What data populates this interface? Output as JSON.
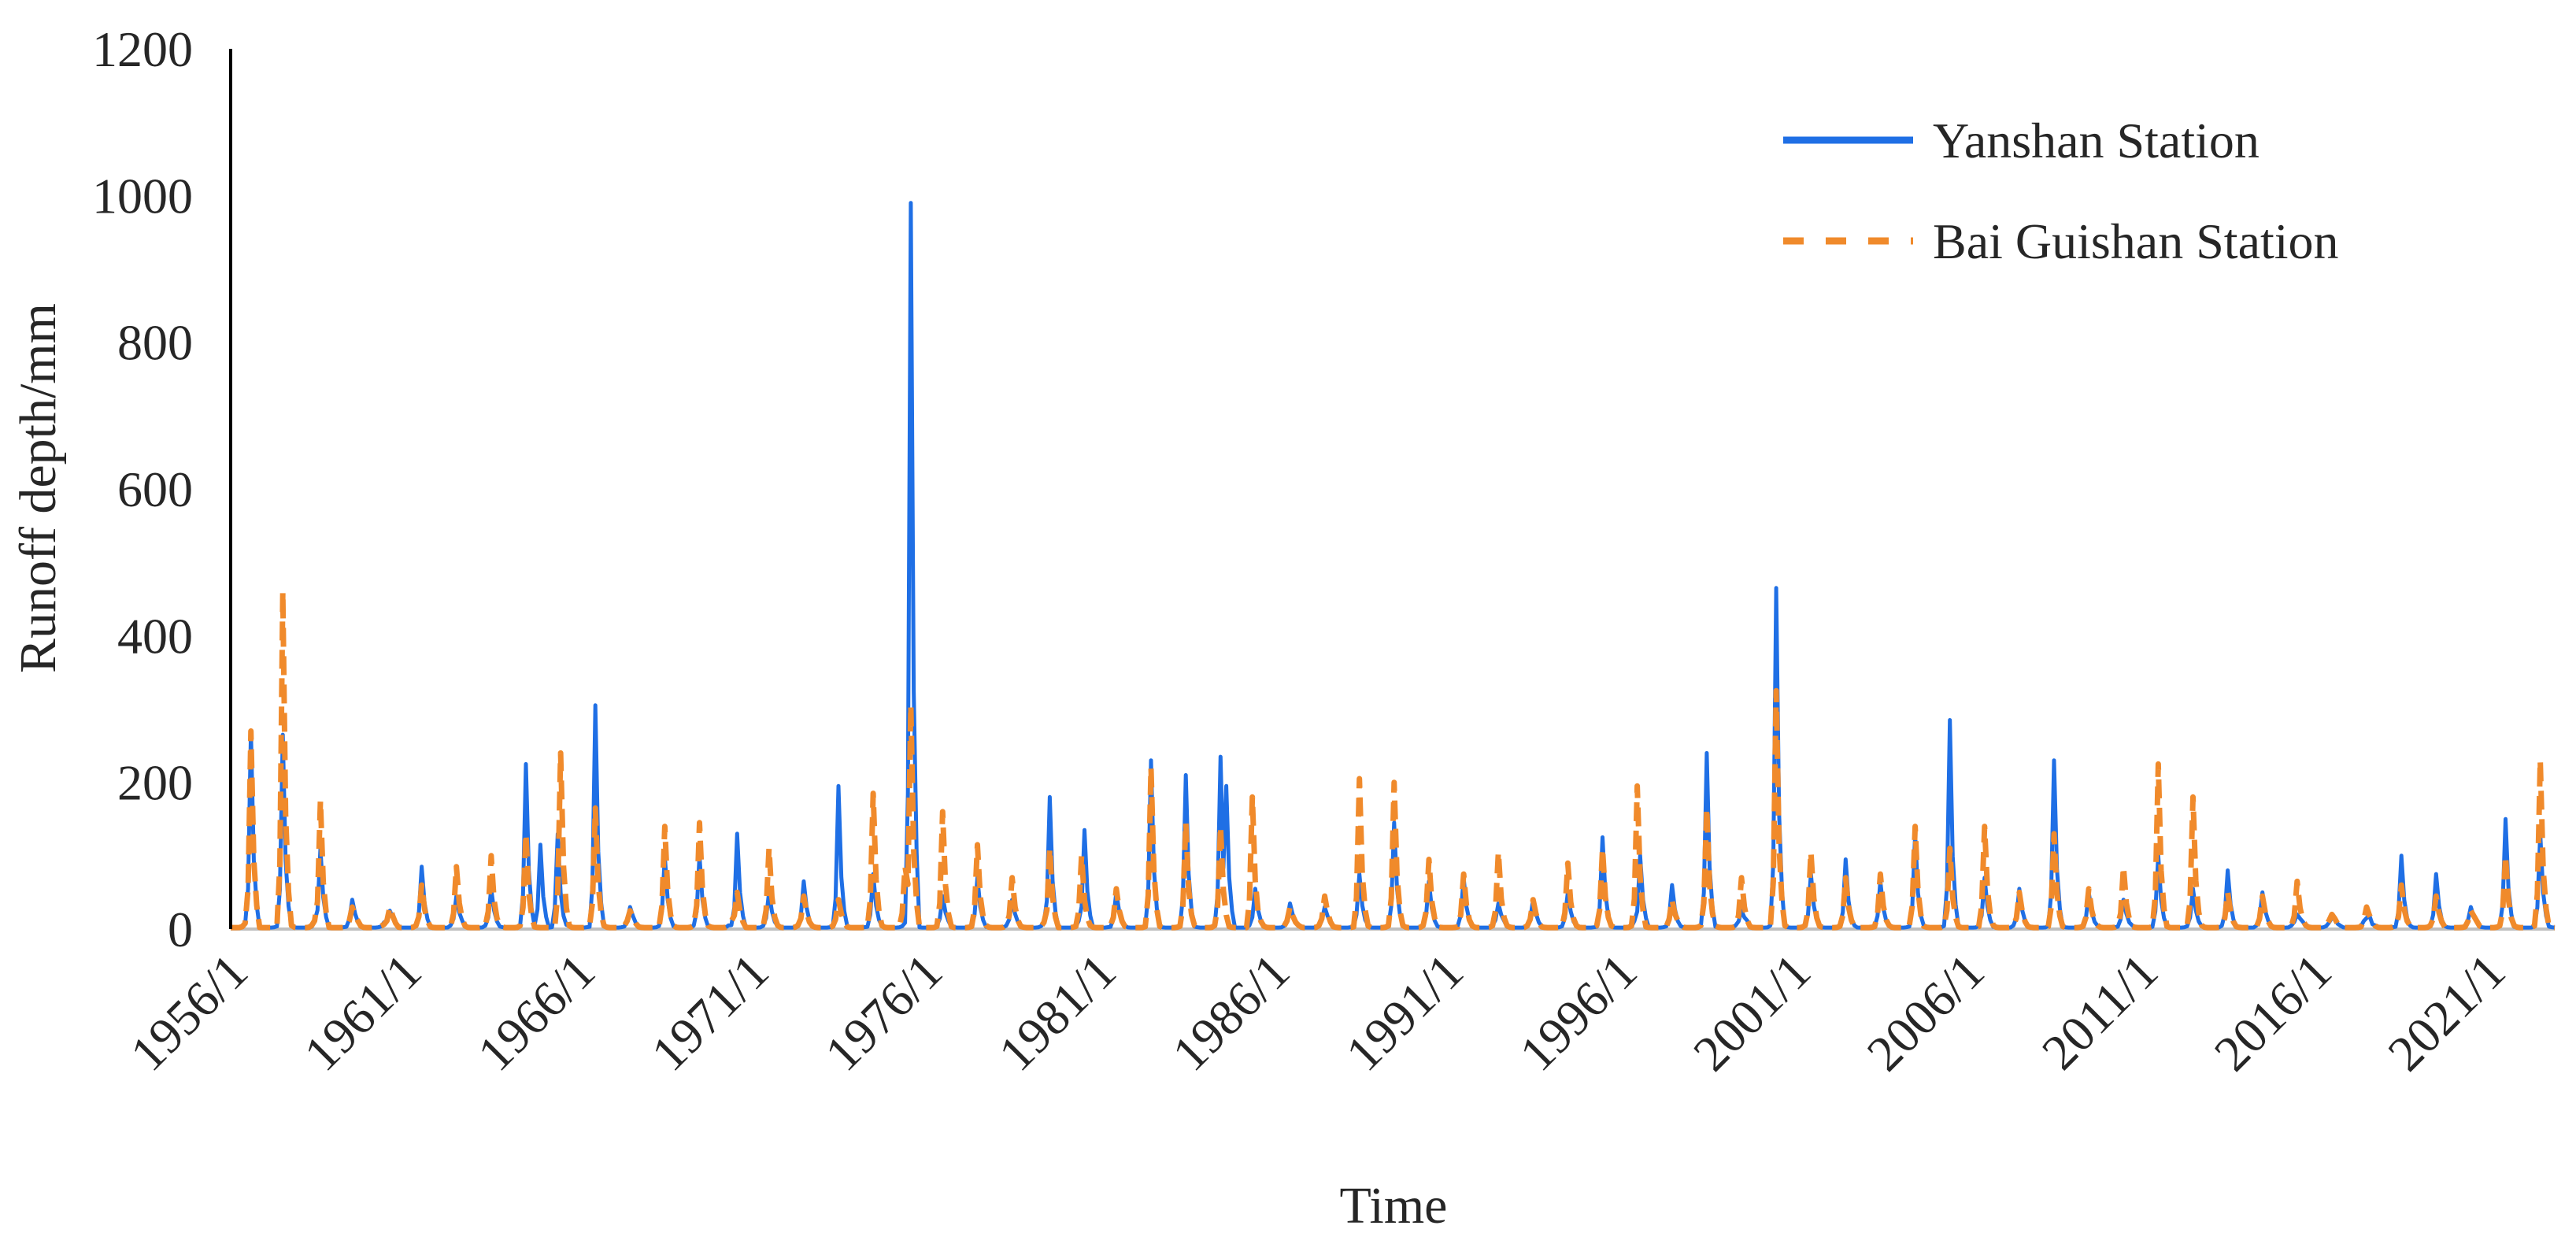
{
  "chart_data": {
    "type": "line",
    "title": "",
    "xlabel": "Time",
    "ylabel": "Runoff depth/mm",
    "ylim": [
      0,
      1200
    ],
    "yticks": [
      "0",
      "200",
      "400",
      "600",
      "800",
      "1000",
      "1200"
    ],
    "xticks": [
      "1956/1",
      "1961/1",
      "1966/1",
      "1971/1",
      "1976/1",
      "1981/1",
      "1986/1",
      "1991/1",
      "1996/1",
      "2001/1",
      "2006/1",
      "2011/1",
      "2016/1",
      "2021/1"
    ],
    "x_start": "1956/1",
    "x_end": "2022/12",
    "x_unit": "month",
    "legend_position": "top-right",
    "grid": false,
    "series": [
      {
        "name": "Yanshan Station",
        "color": "#1f6fe5",
        "style": "solid",
        "peaks": [
          [
            "1956/8",
            270
          ],
          [
            "1957/7",
            265
          ],
          [
            "1958/8",
            110
          ],
          [
            "1959/7",
            40
          ],
          [
            "1960/8",
            25
          ],
          [
            "1961/7",
            85
          ],
          [
            "1962/7",
            45
          ],
          [
            "1963/7",
            55
          ],
          [
            "1964/7",
            225
          ],
          [
            "1964/12",
            115
          ],
          [
            "1965/6",
            130
          ],
          [
            "1966/7",
            305
          ],
          [
            "1967/7",
            30
          ],
          [
            "1968/7",
            100
          ],
          [
            "1969/7",
            100
          ],
          [
            "1970/8",
            130
          ],
          [
            "1971/7",
            50
          ],
          [
            "1972/7",
            65
          ],
          [
            "1973/7",
            195
          ],
          [
            "1974/7",
            75
          ],
          [
            "1975/8",
            990
          ],
          [
            "1976/7",
            45
          ],
          [
            "1977/7",
            70
          ],
          [
            "1978/7",
            40
          ],
          [
            "1979/8",
            180
          ],
          [
            "1980/8",
            135
          ],
          [
            "1981/7",
            50
          ],
          [
            "1982/7",
            230
          ],
          [
            "1983/7",
            210
          ],
          [
            "1984/7",
            235
          ],
          [
            "1984/9",
            195
          ],
          [
            "1985/7",
            55
          ],
          [
            "1986/7",
            35
          ],
          [
            "1987/7",
            30
          ],
          [
            "1988/7",
            75
          ],
          [
            "1989/7",
            145
          ],
          [
            "1990/7",
            65
          ],
          [
            "1991/7",
            70
          ],
          [
            "1992/7",
            35
          ],
          [
            "1993/7",
            40
          ],
          [
            "1994/7",
            50
          ],
          [
            "1995/7",
            125
          ],
          [
            "1996/8",
            100
          ],
          [
            "1997/7",
            60
          ],
          [
            "1998/7",
            240
          ],
          [
            "1999/7",
            25
          ],
          [
            "2000/7",
            465
          ],
          [
            "2001/7",
            75
          ],
          [
            "2002/7",
            95
          ],
          [
            "2003/7",
            65
          ],
          [
            "2004/7",
            130
          ],
          [
            "2005/7",
            285
          ],
          [
            "2006/7",
            70
          ],
          [
            "2007/7",
            55
          ],
          [
            "2008/7",
            230
          ],
          [
            "2009/7",
            50
          ],
          [
            "2010/7",
            40
          ],
          [
            "2011/7",
            100
          ],
          [
            "2012/7",
            55
          ],
          [
            "2013/7",
            80
          ],
          [
            "2014/7",
            50
          ],
          [
            "2015/7",
            20
          ],
          [
            "2016/7",
            15
          ],
          [
            "2017/7",
            15
          ],
          [
            "2018/7",
            100
          ],
          [
            "2019/7",
            75
          ],
          [
            "2020/7",
            30
          ],
          [
            "2021/7",
            150
          ],
          [
            "2022/7",
            130
          ]
        ]
      },
      {
        "name": "Bai Guishan Station",
        "color": "#f08a2b",
        "style": "dashed",
        "peaks": [
          [
            "1956/8",
            270
          ],
          [
            "1957/7",
            460
          ],
          [
            "1958/8",
            175
          ],
          [
            "1959/7",
            30
          ],
          [
            "1960/8",
            30
          ],
          [
            "1961/7",
            60
          ],
          [
            "1962/7",
            85
          ],
          [
            "1963/7",
            100
          ],
          [
            "1964/7",
            130
          ],
          [
            "1965/7",
            240
          ],
          [
            "1966/7",
            165
          ],
          [
            "1967/7",
            25
          ],
          [
            "1968/7",
            140
          ],
          [
            "1969/7",
            145
          ],
          [
            "1970/8",
            50
          ],
          [
            "1971/7",
            110
          ],
          [
            "1972/7",
            45
          ],
          [
            "1973/7",
            40
          ],
          [
            "1974/7",
            185
          ],
          [
            "1975/6",
            85
          ],
          [
            "1975/8",
            305
          ],
          [
            "1976/7",
            160
          ],
          [
            "1977/7",
            115
          ],
          [
            "1978/7",
            70
          ],
          [
            "1979/8",
            110
          ],
          [
            "1980/7",
            100
          ],
          [
            "1981/7",
            55
          ],
          [
            "1982/7",
            220
          ],
          [
            "1983/7",
            145
          ],
          [
            "1984/7",
            140
          ],
          [
            "1985/6",
            180
          ],
          [
            "1986/7",
            30
          ],
          [
            "1987/7",
            45
          ],
          [
            "1988/7",
            205
          ],
          [
            "1989/7",
            200
          ],
          [
            "1990/7",
            95
          ],
          [
            "1991/7",
            75
          ],
          [
            "1992/7",
            105
          ],
          [
            "1993/7",
            40
          ],
          [
            "1994/7",
            90
          ],
          [
            "1995/7",
            110
          ],
          [
            "1996/7",
            195
          ],
          [
            "1997/7",
            40
          ],
          [
            "1998/7",
            165
          ],
          [
            "1999/7",
            70
          ],
          [
            "2000/7",
            325
          ],
          [
            "2001/7",
            105
          ],
          [
            "2002/7",
            70
          ],
          [
            "2003/7",
            75
          ],
          [
            "2004/7",
            140
          ],
          [
            "2005/7",
            110
          ],
          [
            "2006/7",
            140
          ],
          [
            "2007/7",
            50
          ],
          [
            "2008/7",
            130
          ],
          [
            "2009/7",
            55
          ],
          [
            "2010/7",
            85
          ],
          [
            "2011/7",
            225
          ],
          [
            "2012/7",
            180
          ],
          [
            "2013/7",
            50
          ],
          [
            "2014/7",
            45
          ],
          [
            "2015/7",
            65
          ],
          [
            "2016/7",
            20
          ],
          [
            "2017/7",
            30
          ],
          [
            "2018/7",
            60
          ],
          [
            "2019/7",
            45
          ],
          [
            "2020/7",
            25
          ],
          [
            "2021/7",
            100
          ],
          [
            "2022/7",
            230
          ]
        ]
      }
    ]
  }
}
